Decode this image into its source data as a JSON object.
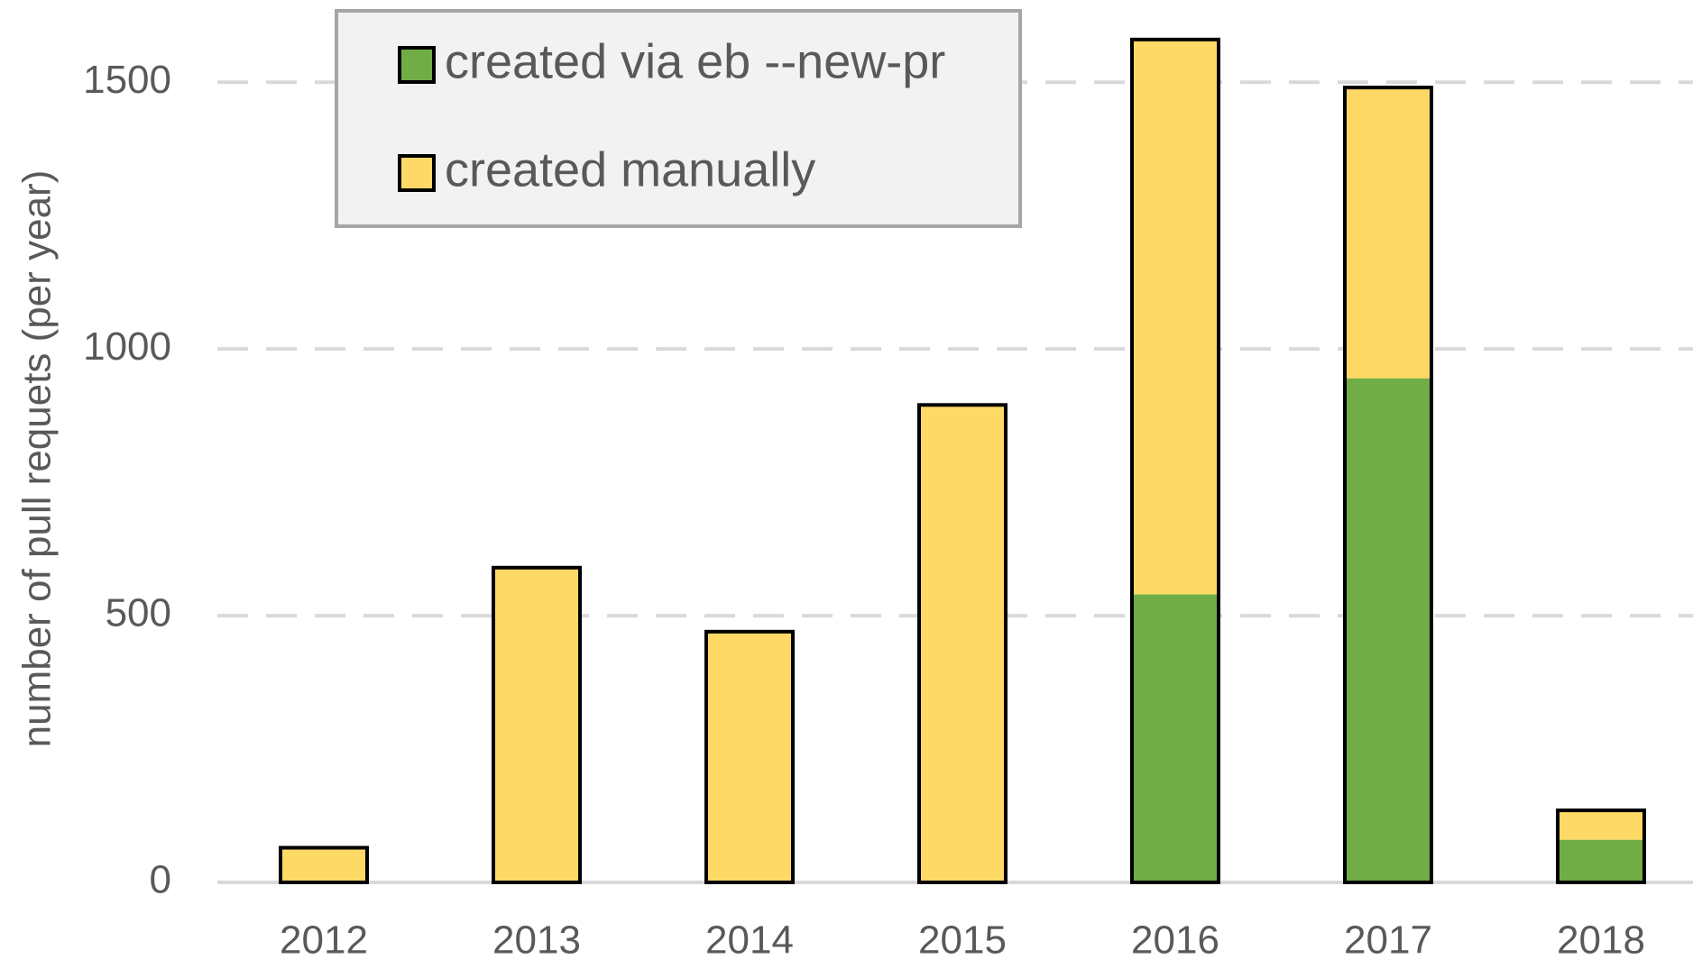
{
  "chart_data": {
    "type": "stacked_bar",
    "y_label": "number of pull requets  (per year)",
    "categories": [
      "2012",
      "2013",
      "2014",
      "2015",
      "2016",
      "2017",
      "2018"
    ],
    "series": [
      {
        "name": "created via eb --new-pr",
        "color": "#70ad47",
        "values": [
          0,
          0,
          0,
          0,
          540,
          945,
          80
        ]
      },
      {
        "name": "created manually",
        "color": "#ffd966",
        "values": [
          65,
          590,
          470,
          895,
          1040,
          545,
          55
        ]
      }
    ],
    "ylim": [
      0,
      1600
    ],
    "yticks": [
      0,
      500,
      1000,
      1500
    ],
    "grid": true,
    "legend": "upper left"
  }
}
